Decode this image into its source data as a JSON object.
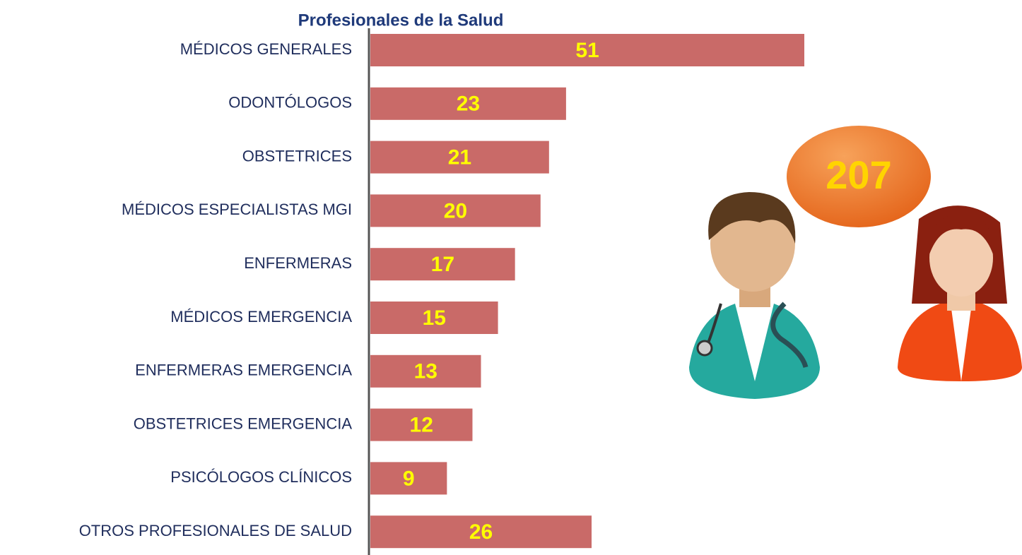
{
  "chart_data": {
    "type": "bar",
    "orientation": "horizontal",
    "title": "Profesionales de la Salud",
    "categories": [
      "MÉDICOS GENERALES",
      "ODONTÓLOGOS",
      "OBSTETRICES",
      "MÉDICOS ESPECIALISTAS MGI",
      "ENFERMERAS",
      "MÉDICOS EMERGENCIA",
      "ENFERMERAS EMERGENCIA",
      "OBSTETRICES EMERGENCIA",
      "PSICÓLOGOS CLÍNICOS",
      "OTROS PROFESIONALES DE SALUD"
    ],
    "values": [
      51,
      23,
      21,
      20,
      17,
      15,
      13,
      12,
      9,
      26
    ],
    "color": "#c96a68",
    "total": 207
  }
}
